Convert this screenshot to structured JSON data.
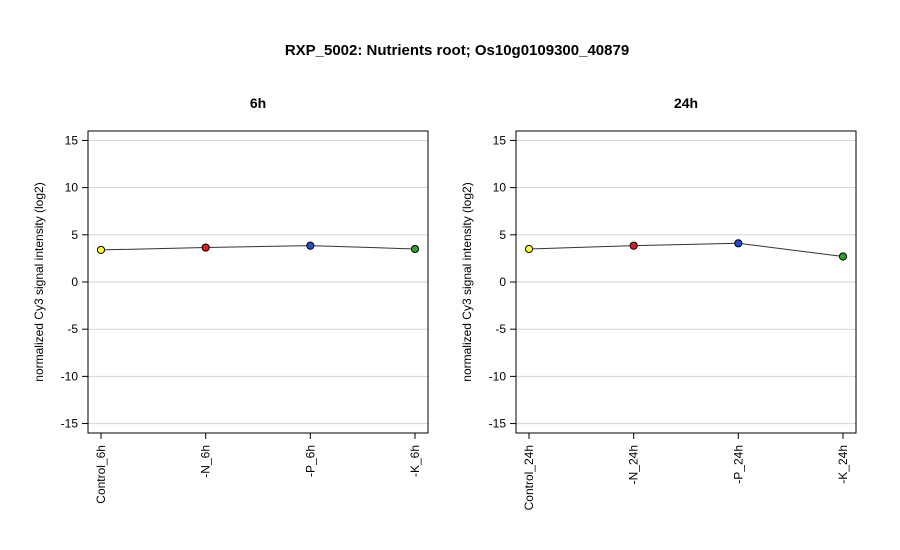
{
  "figure": {
    "title": "RXP_5002: Nutrients root; Os10g0109300_40879"
  },
  "chart_data": [
    {
      "type": "line",
      "title": "6h",
      "ylabel": "normalized Cy3 signal intensity (log2)",
      "xlabel": "",
      "categories": [
        "Control_6h",
        "-N_6h",
        "-P_6h",
        "-K_6h"
      ],
      "values": [
        3.4,
        3.65,
        3.85,
        3.5
      ],
      "point_colors": [
        "#ffff33",
        "#e41a1c",
        "#1f4fd8",
        "#2ca02c"
      ],
      "ylim": [
        -16,
        16
      ],
      "yticks": [
        -15,
        -10,
        -5,
        0,
        5,
        10,
        15
      ],
      "grid": true,
      "legend": "none"
    },
    {
      "type": "line",
      "title": "24h",
      "ylabel": "normalized Cy3 signal intensity (log2)",
      "xlabel": "",
      "categories": [
        "Control_24h",
        "-N_24h",
        "-P_24h",
        "-K_24h"
      ],
      "values": [
        3.5,
        3.85,
        4.1,
        2.7
      ],
      "point_colors": [
        "#ffff33",
        "#e41a1c",
        "#1f4fd8",
        "#2ca02c"
      ],
      "ylim": [
        -16,
        16
      ],
      "yticks": [
        -15,
        -10,
        -5,
        0,
        5,
        10,
        15
      ],
      "grid": true,
      "legend": "none"
    }
  ],
  "colors": {
    "grid": "#d3d3d3",
    "line": "#333333",
    "axis": "#000000"
  }
}
